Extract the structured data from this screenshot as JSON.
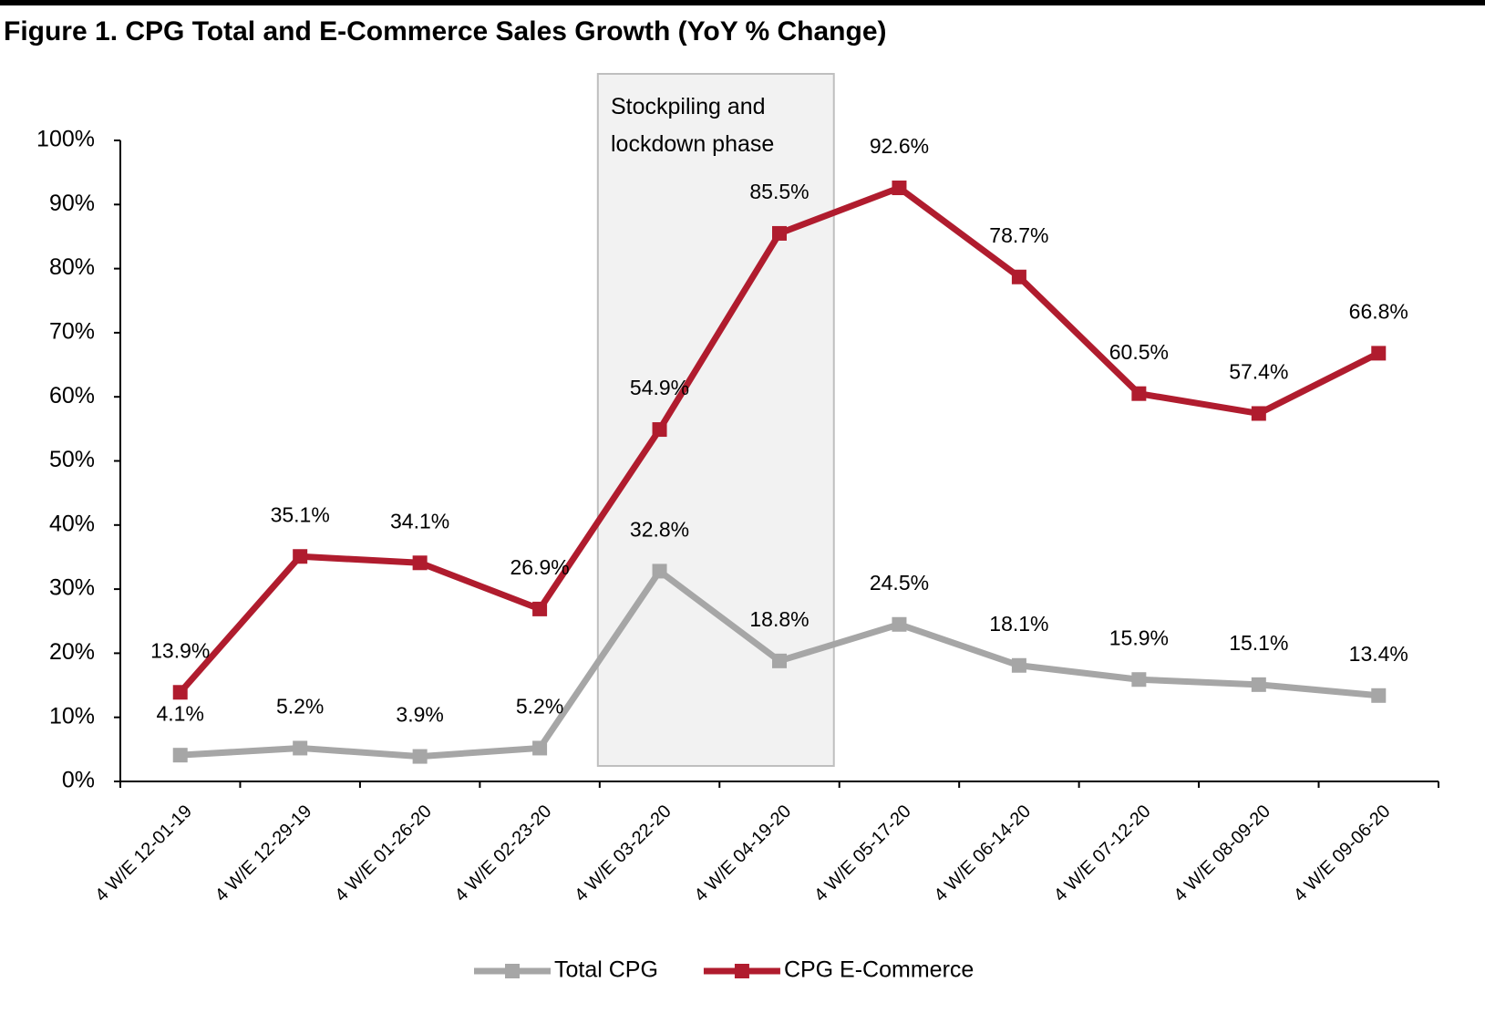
{
  "chart_data": {
    "type": "line",
    "title": "Figure 1. CPG  Total and E-Commerce Sales Growth (YoY % Change)",
    "annotation": "Stockpiling and lockdown phase",
    "categories": [
      "4 W/E 12-01-19",
      "4 W/E 12-29-19",
      "4 W/E 01-26-20",
      "4 W/E 02-23-20",
      "4 W/E 03-22-20",
      "4 W/E 04-19-20",
      "4 W/E 05-17-20",
      "4 W/E 06-14-20",
      "4 W/E 07-12-20",
      "4 W/E 08-09-20",
      "4 W/E 09-06-20"
    ],
    "series": [
      {
        "name": "Total CPG",
        "color": "#a6a6a6",
        "values": [
          4.1,
          5.2,
          3.9,
          5.2,
          32.8,
          18.8,
          24.5,
          18.1,
          15.9,
          15.1,
          13.4
        ],
        "value_labels": [
          "4.1%",
          "5.2%",
          "3.9%",
          "5.2%",
          "32.8%",
          "18.8%",
          "24.5%",
          "18.1%",
          "15.9%",
          "15.1%",
          "13.4%"
        ]
      },
      {
        "name": "CPG E-Commerce",
        "color": "#b01c2e",
        "values": [
          13.9,
          35.1,
          34.1,
          26.9,
          54.9,
          85.5,
          92.6,
          78.7,
          60.5,
          57.4,
          66.8
        ],
        "value_labels": [
          "13.9%",
          "35.1%",
          "34.1%",
          "26.9%",
          "54.9%",
          "85.5%",
          "92.6%",
          "78.7%",
          "60.5%",
          "57.4%",
          "66.8%"
        ]
      }
    ],
    "ylim": [
      0,
      100
    ],
    "yticks": [
      {
        "value": 0,
        "label": "0%"
      },
      {
        "value": 10,
        "label": "10%"
      },
      {
        "value": 20,
        "label": "20%"
      },
      {
        "value": 30,
        "label": "30%"
      },
      {
        "value": 40,
        "label": "40%"
      },
      {
        "value": 50,
        "label": "50%"
      },
      {
        "value": 60,
        "label": "60%"
      },
      {
        "value": 70,
        "label": "70%"
      },
      {
        "value": 80,
        "label": "80%"
      },
      {
        "value": 90,
        "label": "90%"
      },
      {
        "value": 100,
        "label": "100%"
      }
    ],
    "grid": false,
    "legend": "bottom"
  }
}
